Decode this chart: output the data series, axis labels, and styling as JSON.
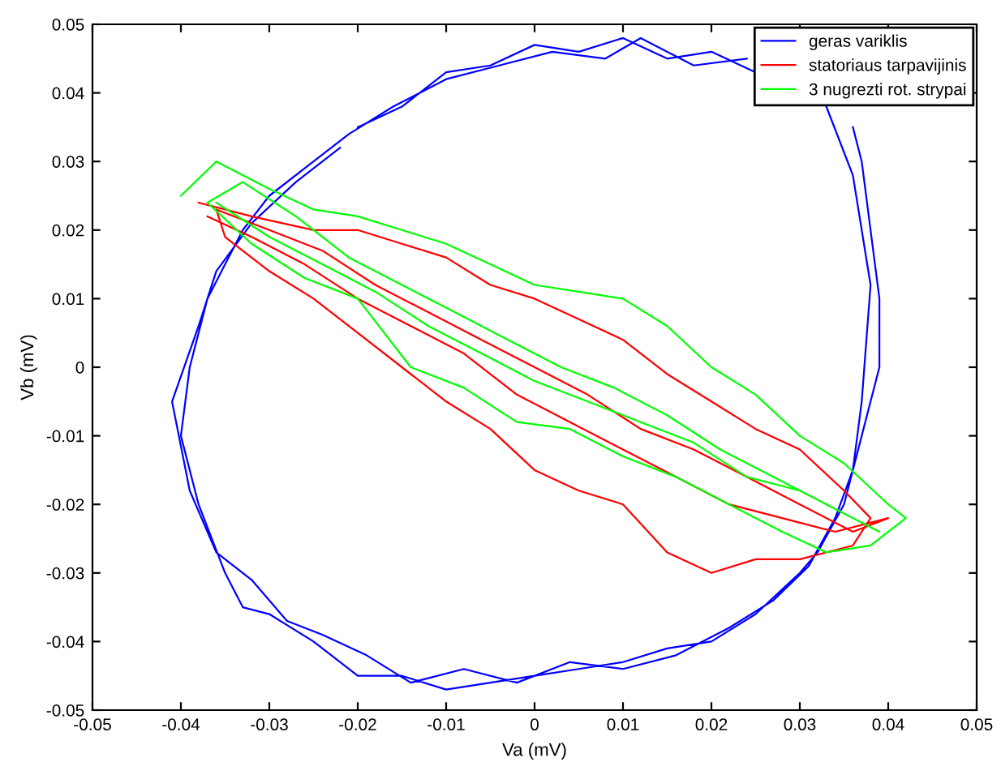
{
  "chart_data": {
    "type": "line",
    "xlabel": "Va (mV)",
    "ylabel": "Vb (mV)",
    "xlim": [
      -0.05,
      0.05
    ],
    "ylim": [
      -0.05,
      0.05
    ],
    "xticks": [
      -0.05,
      -0.04,
      -0.03,
      -0.02,
      -0.01,
      0,
      0.01,
      0.02,
      0.03,
      0.04,
      0.05
    ],
    "yticks": [
      -0.05,
      -0.04,
      -0.03,
      -0.02,
      -0.01,
      0,
      0.01,
      0.02,
      0.03,
      0.04,
      0.05
    ],
    "grid": false,
    "legend": "top right",
    "line_style": "solid",
    "marker": "none",
    "series": [
      {
        "name": "geras variklis",
        "color": "#0000ff",
        "x": [
          -0.02,
          -0.015,
          -0.01,
          -0.005,
          0.0,
          0.005,
          0.01,
          0.015,
          0.02,
          0.025,
          0.03,
          0.034,
          0.036,
          0.037,
          0.038,
          0.039,
          0.039,
          0.037,
          0.035,
          0.032,
          0.03,
          0.025,
          0.02,
          0.015,
          0.01,
          0.005,
          0.0,
          -0.005,
          -0.01,
          -0.015,
          -0.02,
          -0.025,
          -0.03,
          -0.033,
          -0.035,
          -0.038,
          -0.04,
          -0.039,
          -0.037,
          -0.035,
          -0.033,
          -0.03,
          -0.025,
          -0.021,
          -0.016,
          -0.01,
          -0.004,
          0.002,
          0.008,
          0.012,
          0.018,
          0.024,
          0.029,
          0.033,
          0.036,
          0.038,
          0.037,
          0.036,
          0.034,
          0.031,
          0.027,
          0.022,
          0.016,
          0.01,
          0.004,
          -0.002,
          -0.008,
          -0.014,
          -0.019,
          -0.024,
          -0.028,
          -0.032,
          -0.036,
          -0.039,
          -0.041,
          -0.038,
          -0.036,
          -0.032,
          -0.027,
          -0.022
        ],
        "values": [
          0.035,
          0.038,
          0.043,
          0.044,
          0.047,
          0.046,
          0.048,
          0.045,
          0.046,
          0.043,
          null,
          null,
          0.035,
          0.03,
          0.02,
          0.01,
          0.0,
          -0.01,
          -0.02,
          -0.027,
          -0.03,
          -0.036,
          -0.04,
          -0.041,
          -0.043,
          -0.044,
          -0.045,
          -0.046,
          -0.047,
          -0.045,
          -0.045,
          -0.04,
          -0.036,
          -0.035,
          -0.03,
          -0.02,
          -0.01,
          0.0,
          0.01,
          0.015,
          0.02,
          0.025,
          0.03,
          0.034,
          0.038,
          0.042,
          0.044,
          0.046,
          0.045,
          0.048,
          0.044,
          0.045,
          null,
          0.038,
          0.028,
          0.012,
          -0.005,
          -0.015,
          -0.022,
          -0.029,
          -0.034,
          -0.038,
          -0.042,
          -0.044,
          -0.043,
          -0.046,
          -0.044,
          -0.046,
          -0.042,
          -0.039,
          -0.037,
          -0.031,
          -0.027,
          -0.018,
          -0.005,
          0.006,
          0.014,
          0.021,
          0.027,
          0.032
        ]
      },
      {
        "name": "statoriaus tarpavijinis",
        "color": "#ff0000",
        "x": [
          -0.038,
          -0.032,
          -0.025,
          -0.02,
          -0.015,
          -0.01,
          -0.005,
          0.0,
          0.005,
          0.01,
          0.015,
          0.02,
          0.025,
          0.03,
          0.035,
          0.038,
          0.036,
          0.03,
          0.025,
          0.02,
          0.015,
          0.01,
          0.005,
          0.0,
          -0.005,
          -0.01,
          -0.015,
          -0.02,
          -0.025,
          -0.03,
          -0.035,
          -0.036,
          -0.03,
          -0.024,
          -0.018,
          -0.012,
          -0.006,
          0.0,
          0.006,
          0.012,
          0.018,
          0.024,
          0.03,
          0.036,
          0.04,
          0.034,
          0.028,
          0.022,
          0.016,
          0.01,
          0.004,
          -0.002,
          -0.008,
          -0.014,
          -0.02,
          -0.026,
          -0.032,
          -0.037
        ],
        "values": [
          0.024,
          0.022,
          0.02,
          0.02,
          0.018,
          0.016,
          0.012,
          0.01,
          0.007,
          0.004,
          -0.001,
          -0.005,
          -0.009,
          -0.012,
          -0.018,
          -0.022,
          -0.026,
          -0.028,
          -0.028,
          -0.03,
          -0.027,
          -0.02,
          -0.018,
          -0.015,
          -0.009,
          -0.005,
          0.0,
          0.005,
          0.01,
          0.014,
          0.019,
          0.023,
          0.02,
          0.017,
          0.012,
          0.008,
          0.004,
          0.0,
          -0.004,
          -0.009,
          -0.012,
          -0.016,
          -0.02,
          -0.024,
          -0.022,
          -0.024,
          -0.022,
          -0.02,
          -0.016,
          -0.012,
          -0.008,
          -0.004,
          0.002,
          0.006,
          0.01,
          0.015,
          0.019,
          0.022
        ]
      },
      {
        "name": "3 nugrezti rot. strypai",
        "color": "#00ff00",
        "x": [
          -0.04,
          -0.036,
          -0.03,
          -0.025,
          -0.02,
          -0.015,
          -0.01,
          -0.005,
          0.0,
          0.005,
          0.01,
          0.015,
          0.02,
          0.025,
          0.03,
          0.035,
          0.04,
          0.042,
          0.038,
          0.033,
          0.028,
          0.022,
          0.016,
          0.01,
          0.004,
          -0.002,
          -0.008,
          -0.014,
          -0.02,
          -0.026,
          -0.032,
          -0.037,
          -0.033,
          -0.027,
          -0.021,
          -0.015,
          -0.009,
          -0.003,
          0.003,
          0.009,
          0.015,
          0.021,
          0.027,
          0.033,
          0.039,
          0.036,
          0.03,
          0.024,
          0.018,
          0.012,
          0.006,
          0.0,
          -0.006,
          -0.012,
          -0.018,
          -0.024,
          -0.03,
          -0.036
        ],
        "values": [
          0.025,
          0.03,
          0.026,
          0.023,
          0.022,
          0.02,
          0.018,
          0.015,
          0.012,
          0.011,
          0.01,
          0.006,
          0.0,
          -0.004,
          -0.01,
          -0.014,
          -0.02,
          -0.022,
          -0.026,
          -0.027,
          -0.024,
          -0.02,
          -0.016,
          -0.013,
          -0.009,
          -0.008,
          -0.003,
          0.0,
          0.01,
          0.013,
          0.018,
          0.024,
          0.027,
          0.022,
          0.016,
          0.012,
          0.008,
          0.004,
          0.0,
          -0.003,
          -0.007,
          -0.012,
          -0.016,
          -0.02,
          -0.024,
          -0.022,
          -0.018,
          -0.016,
          -0.011,
          -0.008,
          -0.005,
          -0.002,
          0.002,
          0.006,
          0.011,
          0.015,
          0.019,
          0.024
        ]
      }
    ]
  }
}
